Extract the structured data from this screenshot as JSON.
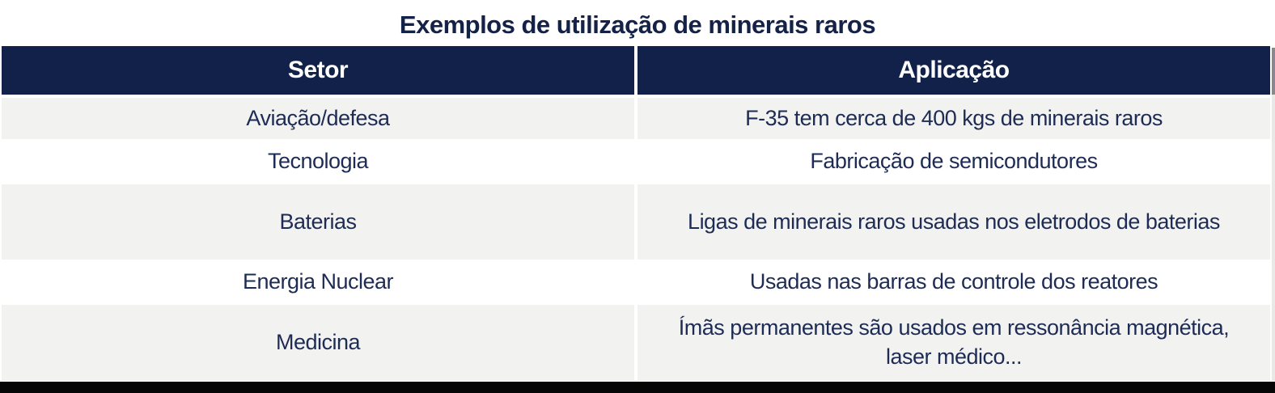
{
  "title": "Exemplos de utilização de minerais raros",
  "chart_data": {
    "type": "table",
    "title": "Exemplos de utilização de minerais raros",
    "columns": [
      "Setor",
      "Aplicação"
    ],
    "rows": [
      [
        "Aviação/defesa",
        "F-35 tem cerca de 400 kgs de minerais raros"
      ],
      [
        "Tecnologia",
        "Fabricação de semicondutores"
      ],
      [
        "Baterias",
        "Ligas de minerais raros usadas nos eletrodos de baterias"
      ],
      [
        "Energia Nuclear",
        "Usadas nas barras de controle dos reatores"
      ],
      [
        "Medicina",
        "Ímãs permanentes são usados em ressonância magnética, laser médico..."
      ]
    ],
    "layout_hints": {
      "zebra_striping": true,
      "striped_row_indexes": [
        0,
        2,
        4
      ],
      "text_alignment": "center"
    }
  },
  "colors": {
    "header_bg": "#122149",
    "header_text": "#ffffff",
    "title_color": "#152247",
    "body_text": "#1e2c55",
    "row_alt_bg": "#f2f2f0",
    "row_bg": "#ffffff",
    "bottom_bar": "#060606",
    "edge_dark": "#87898c",
    "edge_light": "#e9e9e7"
  }
}
